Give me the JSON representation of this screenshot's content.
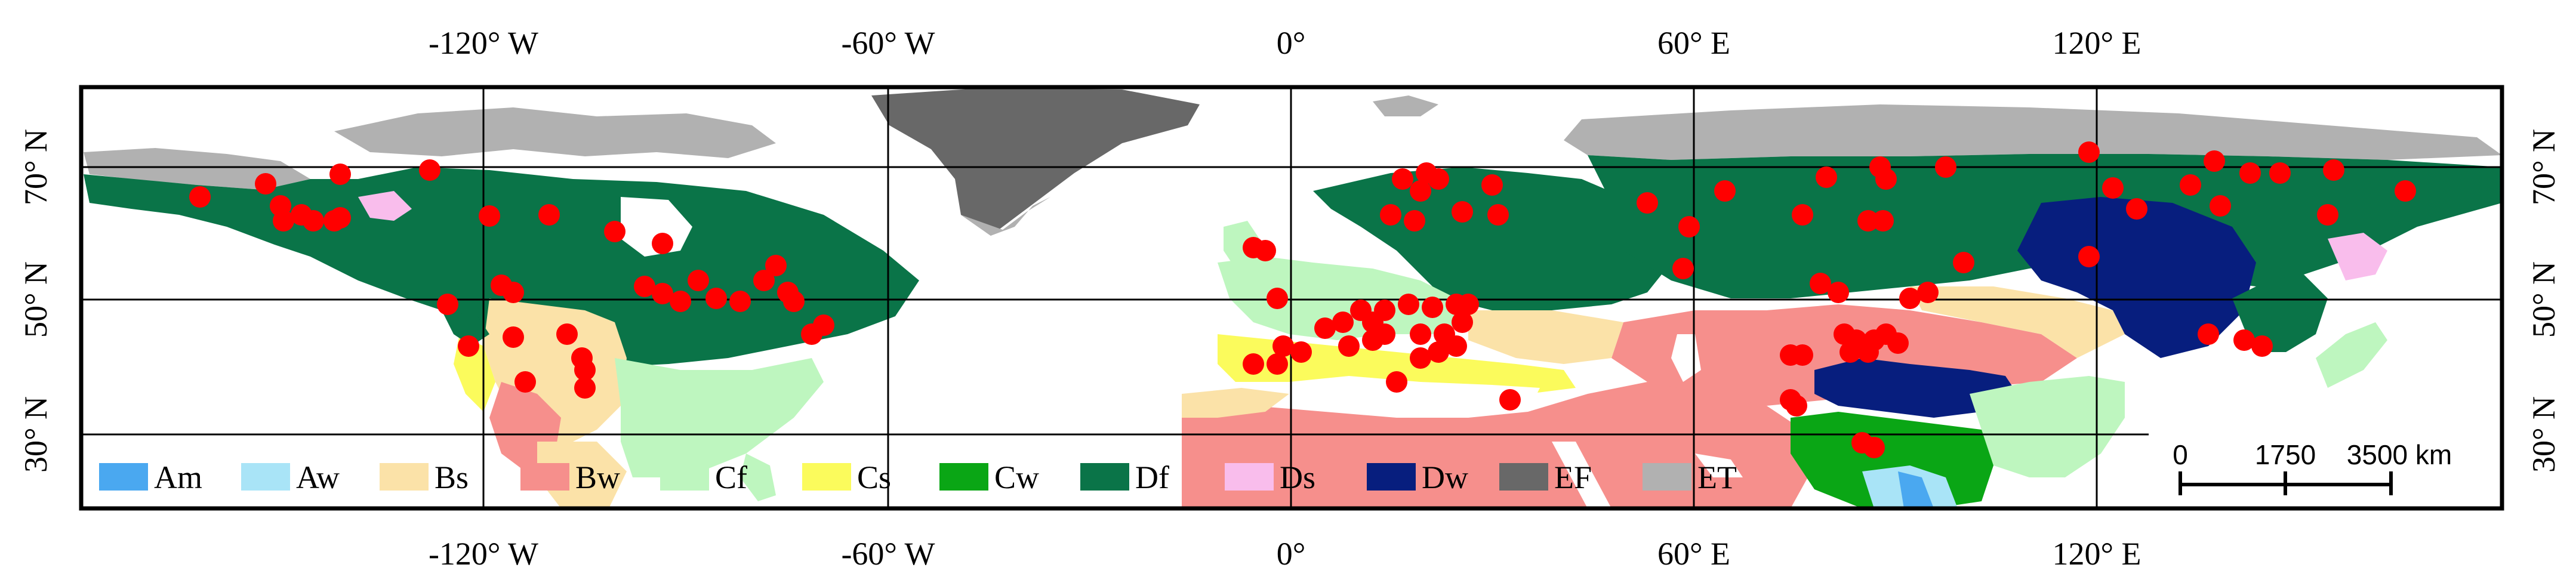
{
  "map": {
    "lon_ticks_top": [
      "-120° W",
      "-60° W",
      "0°",
      "60° E",
      "120° E"
    ],
    "lon_ticks_bottom": [
      "-120° W",
      "-60° W",
      "0°",
      "60° E",
      "120° E"
    ],
    "lat_ticks_left": [
      "70° N",
      "50° N",
      "30° N"
    ],
    "lat_ticks_right": [
      "70° N",
      "50° N",
      "30° N"
    ],
    "legend": [
      {
        "code": "Am",
        "color": "#4aa8f0"
      },
      {
        "code": "Aw",
        "color": "#a9e4f7"
      },
      {
        "code": "Bs",
        "color": "#fbe2a8"
      },
      {
        "code": "Bw",
        "color": "#f68f8c"
      },
      {
        "code": "Cf",
        "color": "#bef6bf"
      },
      {
        "code": "Cs",
        "color": "#fbfb5c"
      },
      {
        "code": "Cw",
        "color": "#0aa615"
      },
      {
        "code": "Df",
        "color": "#0a7448"
      },
      {
        "code": "Ds",
        "color": "#f9bdec"
      },
      {
        "code": "Dw",
        "color": "#071e7e"
      },
      {
        "code": "EF",
        "color": "#686868"
      },
      {
        "code": "ET",
        "color": "#b1b1b1"
      }
    ],
    "scale_bar": {
      "labels": [
        "0",
        "1750",
        "3500 km"
      ]
    },
    "station_color": "#ff0000"
  }
}
